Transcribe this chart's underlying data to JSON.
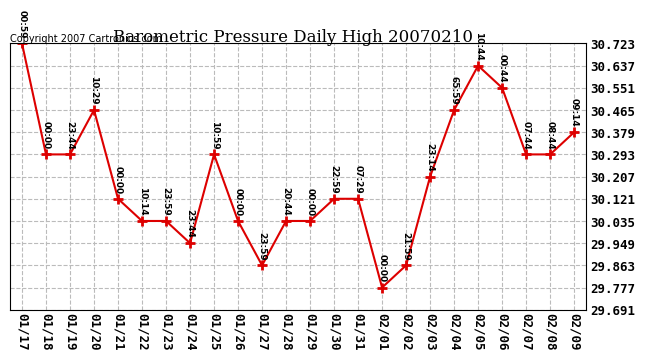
{
  "title": "Barometric Pressure Daily High 20070210",
  "copyright": "Copyright 2007 Cartronics.com",
  "x_labels": [
    "01/17",
    "01/18",
    "01/19",
    "01/20",
    "01/21",
    "01/22",
    "01/23",
    "01/24",
    "01/25",
    "01/26",
    "01/27",
    "01/28",
    "01/29",
    "01/30",
    "01/31",
    "02/01",
    "02/02",
    "02/03",
    "02/04",
    "02/05",
    "02/06",
    "02/07",
    "02/08",
    "02/09"
  ],
  "y_values": [
    30.723,
    30.293,
    30.293,
    30.465,
    30.121,
    30.035,
    30.035,
    29.949,
    30.293,
    30.035,
    29.863,
    30.035,
    30.035,
    30.121,
    30.121,
    29.777,
    29.863,
    30.207,
    30.465,
    30.637,
    30.551,
    30.293,
    30.293,
    30.379
  ],
  "point_labels": [
    "00:59",
    "00:00",
    "23:44",
    "10:29",
    "00:00",
    "10:14",
    "23:59",
    "23:44",
    "10:59",
    "00:00",
    "23:59",
    "20:44",
    "00:00",
    "22:59",
    "07:29",
    "00:00",
    "21:59",
    "23:14",
    "65:59",
    "10:44",
    "00:44",
    "07:44",
    "08:44",
    "09:14"
  ],
  "ylim_min": 29.691,
  "ylim_max": 30.723,
  "yticks": [
    29.691,
    29.777,
    29.863,
    29.949,
    30.035,
    30.121,
    30.207,
    30.293,
    30.379,
    30.465,
    30.551,
    30.637,
    30.723
  ],
  "line_color": "#DD0000",
  "marker_color": "#DD0000",
  "grid_color": "#BBBBBB",
  "bg_color": "#FFFFFF",
  "plot_bg_color": "#FFFFFF",
  "title_fontsize": 12,
  "label_fontsize": 6.5,
  "tick_fontsize": 9,
  "copyright_fontsize": 7
}
